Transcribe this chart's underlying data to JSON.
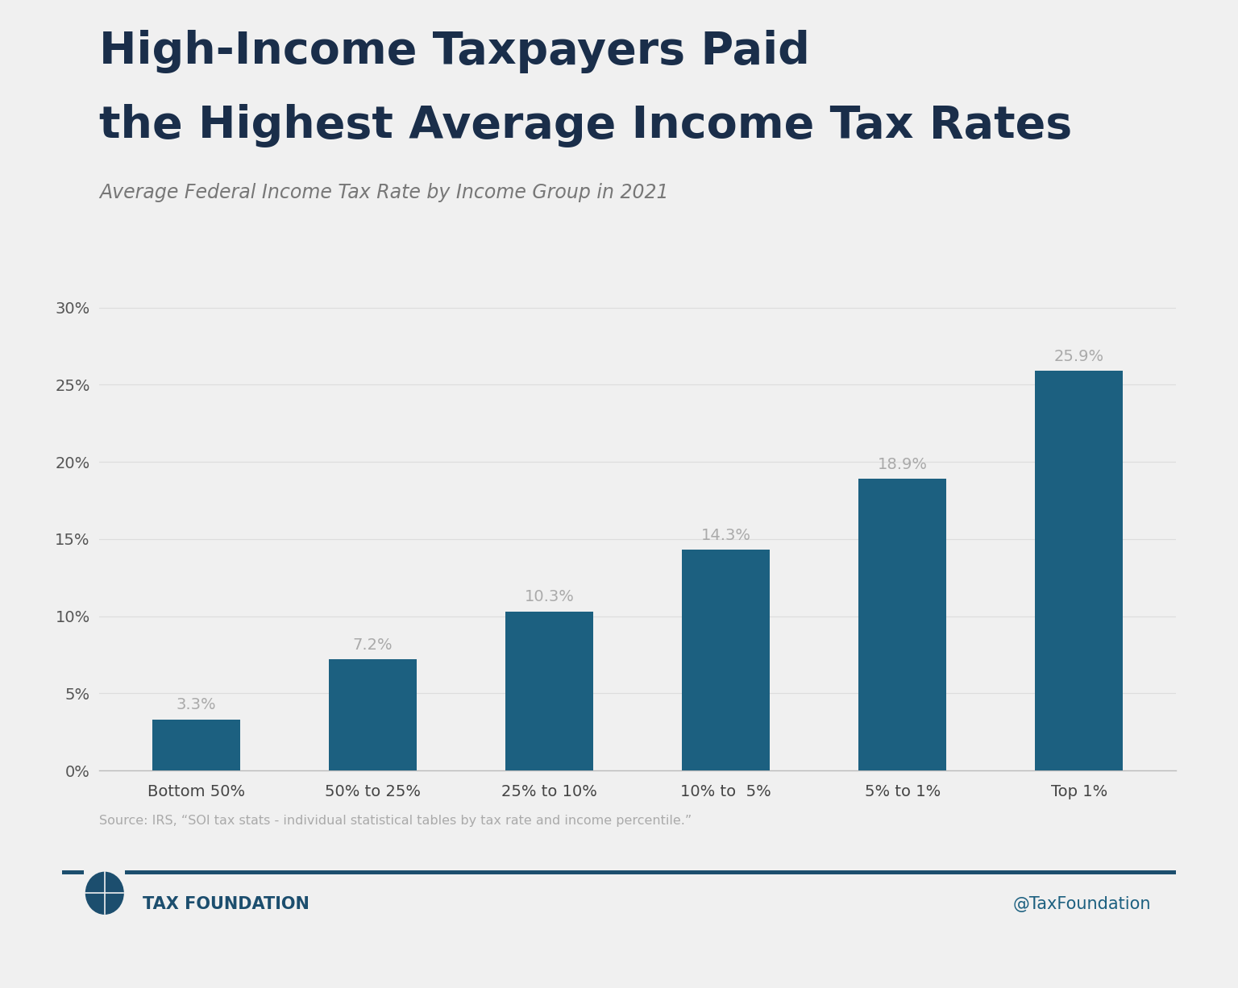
{
  "title_line1": "High-Income Taxpayers Paid",
  "title_line2": "the Highest Average Income Tax Rates",
  "subtitle": "Average Federal Income Tax Rate by Income Group in 2021",
  "categories": [
    "Bottom 50%",
    "50% to 25%",
    "25% to 10%",
    "10% to  5%",
    "5% to 1%",
    "Top 1%"
  ],
  "values": [
    3.3,
    7.2,
    10.3,
    14.3,
    18.9,
    25.9
  ],
  "bar_color": "#1c6080",
  "background_color": "#f0f0f0",
  "title_color": "#1a2e4a",
  "subtitle_color": "#777777",
  "label_color": "#aaaaaa",
  "ytick_labels": [
    "0%",
    "5%",
    "10%",
    "15%",
    "20%",
    "25%",
    "30%"
  ],
  "ytick_values": [
    0,
    5,
    10,
    15,
    20,
    25,
    30
  ],
  "ylim": [
    0,
    32
  ],
  "source_text": "Source: IRS, “SOI tax stats - individual statistical tables by tax rate and income percentile.”",
  "footer_left": "TAX FOUNDATION",
  "footer_right": "@TaxFoundation",
  "grid_color": "#dddddd",
  "axis_line_color": "#bbbbbb",
  "footer_line_color": "#1c4e6e",
  "bar_width": 0.5
}
